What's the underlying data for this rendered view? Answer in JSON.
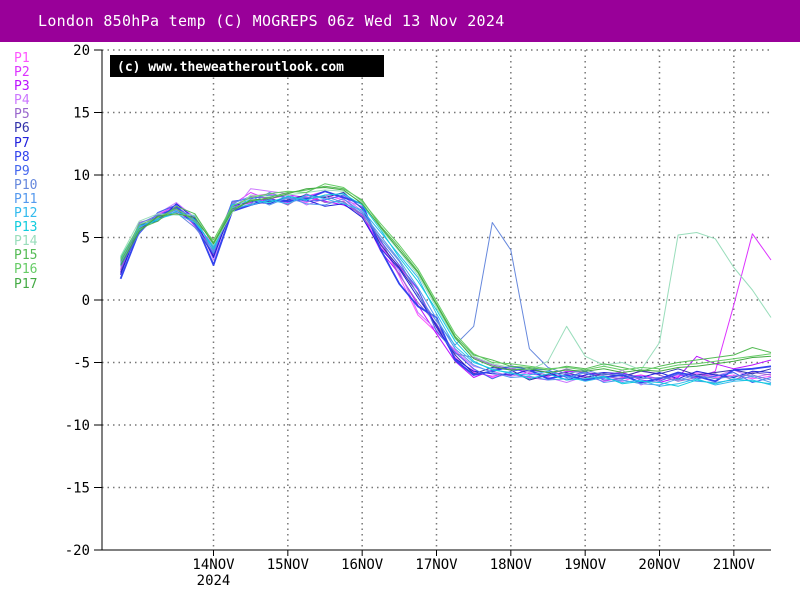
{
  "header": {
    "title": "London 850hPa temp (C) MOGREPS 06z Wed 13 Nov 2024"
  },
  "colors": {
    "title_bg": "#990099",
    "title_fg": "#ffffff",
    "grid": "#777777",
    "axis": "#000000"
  },
  "chart_data": {
    "type": "line",
    "title": "London 850hPa temp (C) MOGREPS 06z Wed 13 Nov 2024",
    "watermark": "(c) www.theweatheroutlook.com",
    "ylabel": "",
    "xlabel": "",
    "ylim": [
      -20,
      20
    ],
    "yticks": [
      20,
      15,
      10,
      5,
      0,
      -5,
      -10,
      -15,
      -20
    ],
    "xlim": [
      -0.5,
      8.5
    ],
    "xticks": [
      {
        "x": 1,
        "label": "14NOV",
        "sub": "2024"
      },
      {
        "x": 2,
        "label": "15NOV",
        "sub": ""
      },
      {
        "x": 3,
        "label": "16NOV",
        "sub": ""
      },
      {
        "x": 4,
        "label": "17NOV",
        "sub": ""
      },
      {
        "x": 5,
        "label": "18NOV",
        "sub": ""
      },
      {
        "x": 6,
        "label": "19NOV",
        "sub": ""
      },
      {
        "x": 7,
        "label": "20NOV",
        "sub": ""
      },
      {
        "x": 8,
        "label": "21NOV",
        "sub": ""
      }
    ],
    "grid": true,
    "x": [
      -0.25,
      0,
      0.25,
      0.5,
      0.75,
      1,
      1.25,
      1.5,
      1.75,
      2,
      2.25,
      2.5,
      2.75,
      3,
      3.25,
      3.5,
      3.75,
      4,
      4.25,
      4.5,
      4.75,
      5,
      5.25,
      5.5,
      5.75,
      6,
      6.25,
      6.5,
      6.75,
      7,
      7.25,
      7.5,
      7.75,
      8,
      8.25,
      8.5
    ],
    "series": [
      {
        "name": "P1",
        "color": "#ff55ff",
        "values": [
          2.5,
          5.8,
          6.6,
          7.2,
          6.0,
          4.5,
          7.2,
          8.3,
          8.5,
          8.1,
          7.8,
          8.4,
          8.0,
          7.5,
          4.6,
          1.9,
          -1.2,
          -2.6,
          -4.0,
          -5.6,
          -6.2,
          -5.9,
          -6.3,
          -6.0,
          -6.1,
          -6.3,
          -6.2,
          -6.5,
          -6.0,
          -6.4,
          -6.1,
          -5.9,
          -6.2,
          -6.0,
          -6.3,
          -6.1
        ]
      },
      {
        "name": "P2",
        "color": "#dd33ff",
        "values": [
          2.3,
          5.6,
          6.8,
          7.6,
          5.9,
          3.6,
          7.6,
          8.6,
          8.0,
          7.8,
          8.3,
          8.7,
          8.1,
          6.8,
          4.2,
          2.7,
          0.8,
          -2.1,
          -4.6,
          -5.8,
          -6.1,
          -5.8,
          -6.2,
          -6.4,
          -5.9,
          -6.1,
          -6.5,
          -6.2,
          -6.0,
          -6.3,
          -6.0,
          -6.2,
          -5.7,
          -0.4,
          5.3,
          3.2
        ]
      },
      {
        "name": "P3",
        "color": "#bb11ff",
        "values": [
          2.1,
          5.9,
          6.4,
          7.1,
          6.2,
          3.9,
          7.4,
          7.8,
          8.1,
          8.4,
          8.2,
          7.9,
          7.6,
          6.9,
          3.9,
          2.1,
          -0.4,
          -2.7,
          -4.9,
          -6.2,
          -5.6,
          -5.4,
          -5.9,
          -6.1,
          -5.7,
          -5.8,
          -6.0,
          -5.8,
          -6.4,
          -6.6,
          -6.2,
          -4.5,
          -5.1,
          -5.5,
          -5.2,
          -4.8
        ]
      },
      {
        "name": "P4",
        "color": "#cc77ff",
        "values": [
          2.6,
          5.4,
          6.9,
          7.8,
          6.6,
          3.2,
          7.0,
          8.9,
          8.7,
          8.5,
          7.6,
          8.1,
          8.3,
          7.1,
          4.5,
          2.3,
          -1.0,
          -2.4,
          -4.1,
          -5.3,
          -5.7,
          -6.1,
          -5.8,
          -6.2,
          -6.6,
          -6.1,
          -6.3,
          -5.6,
          -6.8,
          -6.2,
          -6.0,
          -5.8,
          -6.1,
          -5.6,
          -6.2,
          -5.9
        ]
      },
      {
        "name": "P5",
        "color": "#9966cc",
        "values": [
          2.4,
          6.2,
          6.6,
          7.5,
          6.4,
          4.2,
          7.8,
          8.2,
          8.2,
          7.6,
          8.5,
          7.8,
          7.9,
          6.7,
          4.8,
          2.0,
          -0.2,
          -1.9,
          -4.3,
          -4.6,
          -5.2,
          -5.5,
          -5.7,
          -6.0,
          -5.5,
          -5.9,
          -6.1,
          -6.3,
          -5.6,
          -6.0,
          -6.5,
          -6.2,
          -5.9,
          -6.4,
          -5.8,
          -6.0
        ]
      },
      {
        "name": "P6",
        "color": "#3333aa",
        "values": [
          2.2,
          5.7,
          6.5,
          7.3,
          6.1,
          3.5,
          7.3,
          7.6,
          7.9,
          8.0,
          8.4,
          8.2,
          8.6,
          7.3,
          4.4,
          2.6,
          0.5,
          -2.2,
          -4.4,
          -5.9,
          -5.4,
          -5.6,
          -6.4,
          -6.0,
          -5.8,
          -6.2,
          -5.9,
          -6.1,
          -5.7,
          -5.9,
          -5.5,
          -6.0,
          -5.8,
          -5.6,
          -5.9,
          -5.5
        ]
      },
      {
        "name": "P7",
        "color": "#2222dd",
        "values": [
          2.0,
          6.0,
          6.3,
          7.7,
          6.5,
          3.4,
          7.5,
          7.9,
          7.7,
          8.3,
          8.0,
          7.5,
          7.7,
          6.6,
          4.1,
          2.5,
          0.2,
          -2.0,
          -4.7,
          -5.7,
          -5.9,
          -6.0,
          -5.6,
          -5.8,
          -6.4,
          -6.0,
          -5.8,
          -5.9,
          -6.2,
          -5.8,
          -6.3,
          -5.7,
          -6.0,
          -6.2,
          -5.7,
          -5.8
        ]
      },
      {
        "name": "P8",
        "color": "#3344ee",
        "values": [
          1.7,
          5.5,
          6.7,
          7.4,
          6.3,
          2.8,
          7.1,
          7.6,
          8.0,
          7.9,
          8.1,
          8.7,
          8.2,
          7.7,
          4.0,
          1.3,
          -0.5,
          -1.4,
          -4.8,
          -6.0,
          -5.7,
          -5.3,
          -5.6,
          -6.3,
          -6.0,
          -6.4,
          -6.2,
          -6.0,
          -6.6,
          -6.3,
          -5.8,
          -6.1,
          -6.5,
          -5.6,
          -5.5,
          -5.3
        ]
      },
      {
        "name": "P9",
        "color": "#4466ee",
        "values": [
          2.7,
          5.3,
          7.0,
          7.6,
          6.0,
          3.7,
          7.9,
          8.1,
          8.4,
          8.2,
          7.9,
          8.0,
          8.4,
          7.4,
          4.7,
          2.8,
          0.9,
          -2.5,
          -4.2,
          -5.5,
          -6.3,
          -5.7,
          -5.5,
          -5.6,
          -6.2,
          -5.7,
          -6.4,
          -6.3,
          -6.1,
          -6.5,
          -5.9,
          -6.3,
          -6.1,
          -5.8,
          -6.6,
          -6.2
        ]
      },
      {
        "name": "P10",
        "color": "#6688dd",
        "values": [
          3.0,
          6.1,
          6.8,
          7.0,
          5.8,
          4.0,
          7.2,
          7.7,
          8.6,
          8.1,
          8.2,
          8.3,
          7.8,
          6.9,
          4.9,
          3.1,
          0.4,
          -1.7,
          -3.6,
          -2.1,
          6.2,
          4.0,
          -3.9,
          -5.4,
          -5.9,
          -5.6,
          -6.0,
          -5.9,
          -6.3,
          -6.2,
          -6.4,
          -6.0,
          -6.3,
          -6.1,
          -6.0,
          -6.4
        ]
      },
      {
        "name": "P11",
        "color": "#5599ee",
        "values": [
          2.9,
          5.8,
          6.6,
          7.2,
          6.7,
          3.8,
          7.7,
          8.3,
          7.6,
          8.2,
          7.7,
          7.6,
          8.1,
          7.0,
          5.1,
          3.2,
          1.0,
          -1.5,
          -3.9,
          -5.2,
          -5.8,
          -6.2,
          -6.1,
          -6.4,
          -6.3,
          -5.8,
          -6.6,
          -6.4,
          -6.7,
          -6.8,
          -6.3,
          -6.5,
          -6.6,
          -6.4,
          -6.1,
          -6.6
        ]
      },
      {
        "name": "P12",
        "color": "#33bbee",
        "values": [
          3.2,
          5.6,
          6.5,
          6.9,
          6.2,
          4.3,
          7.4,
          7.6,
          8.0,
          7.7,
          8.4,
          8.1,
          7.7,
          7.2,
          5.4,
          3.6,
          1.8,
          -1.1,
          -3.7,
          -5.0,
          -5.5,
          -5.9,
          -6.0,
          -5.7,
          -6.1,
          -6.5,
          -6.2,
          -6.6,
          -6.4,
          -6.9,
          -6.7,
          -6.3,
          -6.8,
          -6.5,
          -6.4,
          -6.8
        ]
      },
      {
        "name": "P13",
        "color": "#11ccdd",
        "values": [
          3.4,
          5.9,
          6.4,
          7.1,
          6.4,
          4.1,
          7.6,
          8.0,
          7.8,
          8.3,
          8.0,
          8.4,
          8.5,
          7.6,
          5.6,
          3.4,
          1.5,
          -0.8,
          -3.3,
          -4.9,
          -5.6,
          -5.8,
          -6.3,
          -5.9,
          -6.4,
          -6.3,
          -6.1,
          -6.7,
          -6.5,
          -6.6,
          -6.9,
          -6.4,
          -6.7,
          -6.3,
          -6.5,
          -6.7
        ]
      },
      {
        "name": "P14",
        "color": "#99ddbb",
        "values": [
          3.5,
          6.3,
          6.9,
          6.8,
          6.8,
          4.4,
          7.0,
          8.4,
          8.3,
          8.4,
          8.6,
          8.8,
          8.7,
          7.8,
          5.7,
          3.9,
          2.0,
          -0.6,
          -3.1,
          -4.5,
          -5.1,
          -5.4,
          -5.6,
          -4.9,
          -2.1,
          -4.5,
          -5.2,
          -5.0,
          -5.6,
          -3.4,
          5.2,
          5.4,
          4.9,
          2.6,
          0.8,
          -1.4
        ]
      },
      {
        "name": "P15",
        "color": "#55bb55",
        "values": [
          3.1,
          5.7,
          6.3,
          7.5,
          6.9,
          4.6,
          7.3,
          7.9,
          8.2,
          8.6,
          8.8,
          9.1,
          8.9,
          8.0,
          5.9,
          4.2,
          2.3,
          -0.3,
          -2.9,
          -4.4,
          -4.8,
          -5.3,
          -5.4,
          -5.6,
          -5.3,
          -5.5,
          -5.1,
          -5.4,
          -5.7,
          -5.3,
          -5.0,
          -4.8,
          -4.6,
          -4.4,
          -3.8,
          -4.2
        ]
      },
      {
        "name": "P16",
        "color": "#66cc66",
        "values": [
          3.3,
          6.0,
          6.6,
          7.3,
          6.3,
          4.8,
          7.5,
          8.2,
          8.5,
          8.7,
          8.6,
          9.3,
          9.0,
          7.9,
          6.1,
          4.4,
          2.5,
          -0.1,
          -2.7,
          -4.3,
          -5.0,
          -5.1,
          -5.3,
          -5.5,
          -5.4,
          -5.6,
          -5.3,
          -5.6,
          -5.4,
          -5.5,
          -5.2,
          -5.1,
          -4.9,
          -4.7,
          -4.5,
          -4.3
        ]
      },
      {
        "name": "P17",
        "color": "#44aa44",
        "values": [
          2.8,
          5.5,
          6.7,
          6.9,
          6.6,
          4.5,
          7.1,
          8.0,
          8.1,
          8.5,
          8.9,
          9.0,
          8.8,
          7.7,
          5.8,
          4.0,
          2.2,
          -0.4,
          -3.0,
          -4.7,
          -5.3,
          -5.6,
          -5.5,
          -5.8,
          -5.6,
          -5.7,
          -5.5,
          -5.8,
          -5.6,
          -5.7,
          -5.4,
          -5.3,
          -5.1,
          -4.9,
          -4.6,
          -4.5
        ]
      }
    ]
  }
}
